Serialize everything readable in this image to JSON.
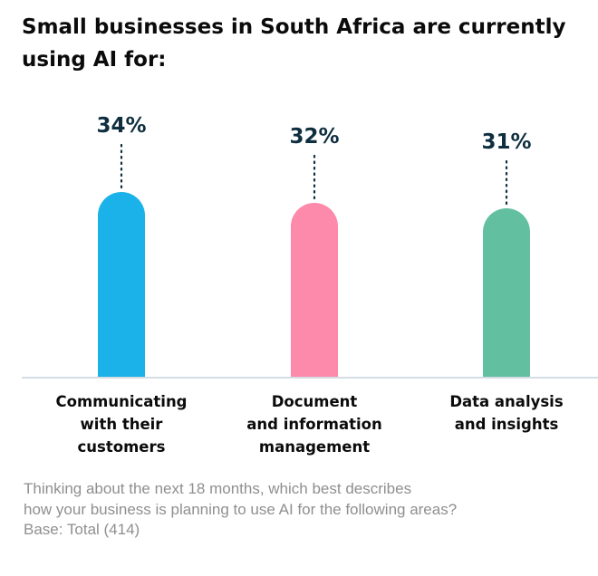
{
  "title_lines": [
    "Small businesses in South Africa are currently",
    "using AI for:"
  ],
  "chart_data": {
    "type": "bar",
    "title": "Small businesses in South Africa are currently using AI for:",
    "categories": [
      [
        "Communicating",
        "with their",
        "customers"
      ],
      [
        "Document",
        "and information",
        "management"
      ],
      [
        "Data analysis",
        "and insights"
      ]
    ],
    "values": [
      34,
      32,
      31
    ],
    "value_labels": [
      "34%",
      "32%",
      "31%"
    ],
    "colors": [
      "#1ab2e8",
      "#fd8aaa",
      "#62c0a0"
    ],
    "label_color": "#0f2f3f",
    "baseline_color": "#d4dde3",
    "grid": false
  },
  "footnote": [
    "Thinking about the next 18 months, which best describes",
    "how your business is planning to use AI for the following areas?",
    "Base: Total (414)"
  ]
}
